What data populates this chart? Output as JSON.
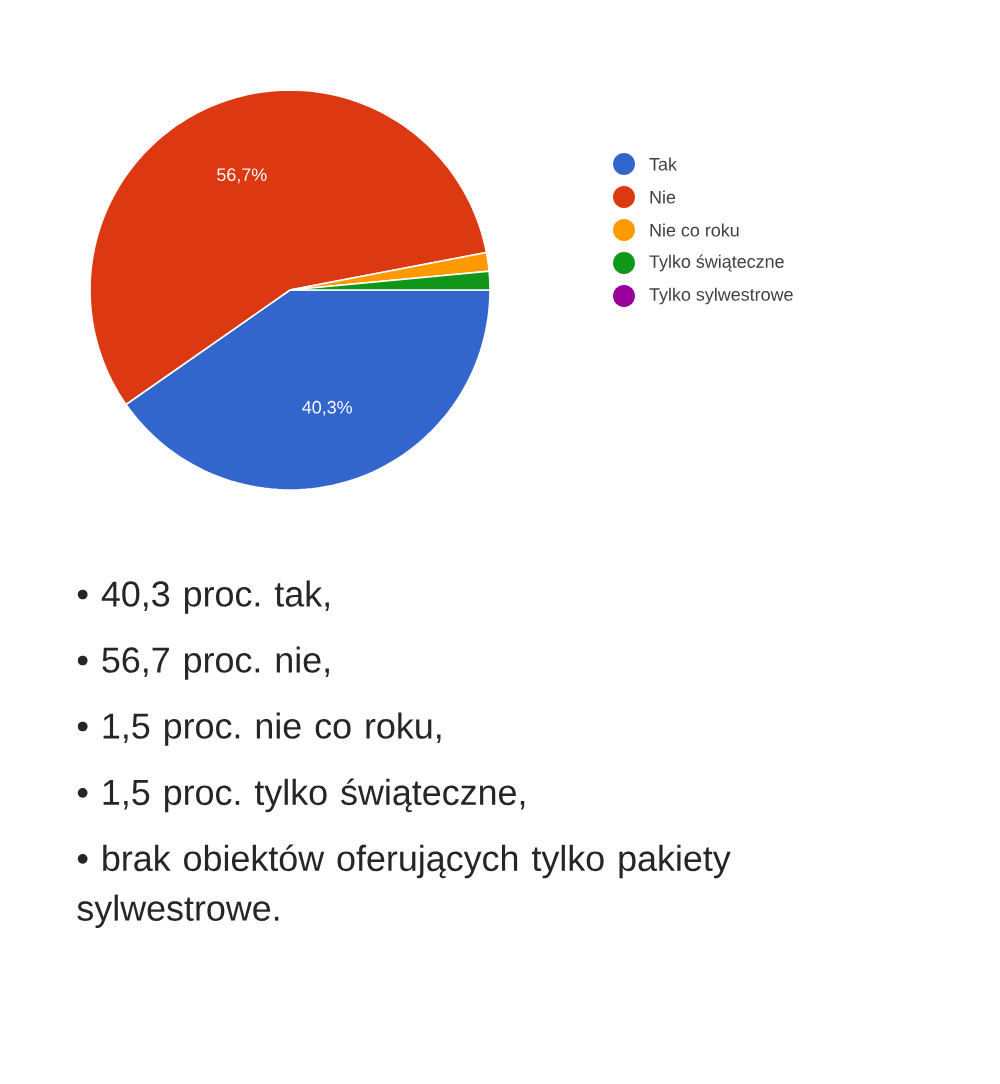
{
  "chart_data": {
    "type": "pie",
    "categories": [
      "Tak",
      "Nie",
      "Nie co roku",
      "Tylko świąteczne",
      "Tylko sylwestrowe"
    ],
    "values": [
      40.3,
      56.7,
      1.5,
      1.5,
      0
    ],
    "colors": [
      "#3366cc",
      "#dc3912",
      "#ff9900",
      "#109618",
      "#990099"
    ],
    "value_labels": [
      "40,3%",
      "56,7%",
      null,
      null,
      null
    ],
    "legend": "right",
    "annotations": [
      "• 40,3 proc. tak,",
      "• 56,7 proc. nie,",
      "• 1,5 proc. nie co roku,",
      "• 1,5 proc. tylko świąteczne,",
      "• brak obiektów oferujących tylko pakiety sylwestrowe."
    ]
  }
}
